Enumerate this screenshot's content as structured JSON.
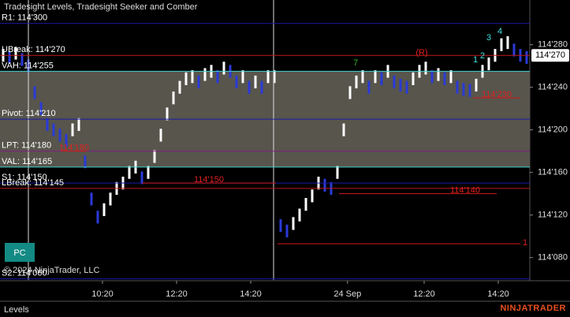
{
  "chart_data": {
    "type": "candlestick",
    "title": "Tradesight Levels, Tradesight Seeker and Comber",
    "copyright": "© 2024 NinjaTrader, LLC",
    "panel_label": "Levels",
    "logo": "NINJATRADER",
    "button": "PC",
    "ylim": [
      114059,
      114322
    ],
    "yticks": [
      {
        "value": 114080,
        "label": "114'080"
      },
      {
        "value": 114120,
        "label": "114'120"
      },
      {
        "value": 114160,
        "label": "114'160"
      },
      {
        "value": 114200,
        "label": "114'200"
      },
      {
        "value": 114240,
        "label": "114'240"
      },
      {
        "value": 114280,
        "label": "114'280"
      }
    ],
    "xlim": [
      -0.5,
      83.5
    ],
    "xticks": [
      {
        "value": 15.75,
        "label": "10:20"
      },
      {
        "value": 27.5,
        "label": "12:20"
      },
      {
        "value": 39.25,
        "label": "14:20"
      },
      {
        "value": 54.6,
        "label": "24 Sep"
      },
      {
        "value": 66.75,
        "label": "12:20"
      },
      {
        "value": 78.5,
        "label": "14:20"
      }
    ],
    "current_price": {
      "value": 114270,
      "label": "114'270"
    },
    "levels": [
      {
        "label": "R1: 114'300",
        "value": 114300,
        "color": "#1a1aa8"
      },
      {
        "label": "UBreak: 114'270",
        "value": 114270,
        "color": "#c01818"
      },
      {
        "label": "VAH: 114'255",
        "value": 114255,
        "color": "#40d0d0"
      },
      {
        "label": "Pivot: 114'210",
        "value": 114210,
        "color": "#1a1aa8"
      },
      {
        "label": "LPT: 114'180",
        "value": 114180,
        "color": "#802080"
      },
      {
        "label": "VAL: 114'165",
        "value": 114165,
        "color": "#40d0d0"
      },
      {
        "label": "S1: 114'150",
        "value": 114150,
        "color": "#1a1aa8"
      },
      {
        "label": "LBreak: 114'145",
        "value": 114145,
        "color": "#c01818"
      },
      {
        "label": "S2: 114'060",
        "value": 114060,
        "color": "#1a1aa8"
      }
    ],
    "marker_lines": [
      {
        "label": "114'180",
        "value": 114180
      },
      {
        "label": "114'150",
        "value": 114150
      },
      {
        "label": "114'140",
        "value": 114140
      },
      {
        "label": "114'230",
        "value": 114230
      },
      {
        "label": "1",
        "value": 114093
      }
    ],
    "annotations": [
      "(R)",
      "7",
      "3",
      "4",
      "1",
      "2"
    ],
    "high": [
      114276,
      114274,
      114278,
      114272,
      114266,
      114241,
      114226,
      114211,
      114206,
      114201,
      114196,
      114206,
      114211,
      114176,
      114141,
      114124,
      114131,
      114141,
      114151,
      114156,
      114166,
      114171,
      114161,
      114166,
      114181,
      114201,
      114221,
      114236,
      114246,
      114254,
      114256,
      114251,
      114258,
      114261,
      114256,
      114264,
      114261,
      114251,
      114256,
      114246,
      114251,
      114246,
      114256,
      114256,
      114116,
      114111,
      114118,
      114126,
      114136,
      114144,
      114156,
      114154,
      114151,
      114166,
      114206,
      114241,
      114251,
      114256,
      114246,
      114256,
      114254,
      114261,
      114251,
      114248,
      114246,
      114254,
      114261,
      114264,
      114256,
      114258,
      114254,
      114256,
      114246,
      114244,
      114243,
      114248,
      114261,
      114268,
      114276,
      114286,
      114288,
      114281,
      114276,
      114274
    ],
    "low": [
      114264,
      114262,
      114266,
      114260,
      114254,
      114229,
      114214,
      114199,
      114194,
      114189,
      114184,
      114194,
      114199,
      114164,
      114129,
      114112,
      114119,
      114129,
      114139,
      114144,
      114154,
      114159,
      114149,
      114154,
      114169,
      114189,
      114209,
      114224,
      114234,
      114242,
      114244,
      114239,
      114246,
      114249,
      114244,
      114252,
      114249,
      114239,
      114244,
      114234,
      114239,
      114234,
      114244,
      114244,
      114104,
      114099,
      114106,
      114114,
      114124,
      114132,
      114144,
      114142,
      114139,
      114154,
      114194,
      114229,
      114239,
      114244,
      114234,
      114244,
      114242,
      114249,
      114239,
      114236,
      114234,
      114242,
      114249,
      114252,
      114244,
      114246,
      114242,
      114244,
      114234,
      114232,
      114231,
      114236,
      114249,
      114256,
      114264,
      114274,
      114276,
      114269,
      114264,
      114262
    ]
  }
}
